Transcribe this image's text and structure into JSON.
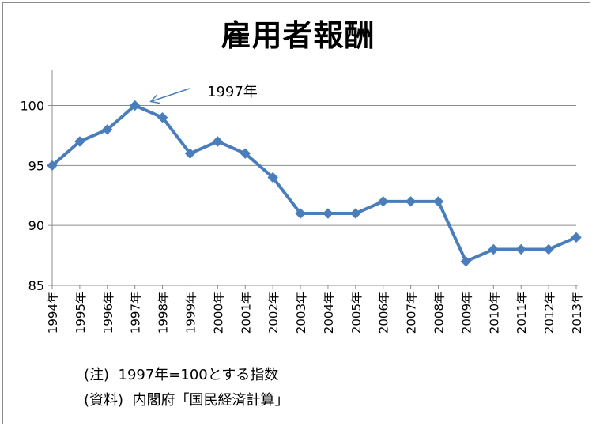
{
  "chart_data": {
    "type": "line",
    "title": "雇用者報酬",
    "x": [
      "1994年",
      "1995年",
      "1996年",
      "1997年",
      "1998年",
      "1999年",
      "2000年",
      "2001年",
      "2002年",
      "2003年",
      "2004年",
      "2005年",
      "2006年",
      "2007年",
      "2008年",
      "2009年",
      "2010年",
      "2011年",
      "2012年",
      "2013年"
    ],
    "series": [
      {
        "values": [
          95,
          97,
          98,
          100,
          99,
          96,
          97,
          96,
          94,
          91,
          91,
          91,
          92,
          92,
          92,
          87,
          88,
          88,
          88,
          89
        ]
      }
    ],
    "ylim": [
      85,
      103
    ],
    "yticks": [
      85,
      90,
      95,
      100
    ],
    "grid": true,
    "annotation": {
      "text": "1997年",
      "target_index": 3
    },
    "line_color": "#4a7ebb"
  },
  "notes": {
    "note1": "(注)  1997年=100とする指数",
    "note2": "(資料)  内閣府「国民経済計算」"
  }
}
